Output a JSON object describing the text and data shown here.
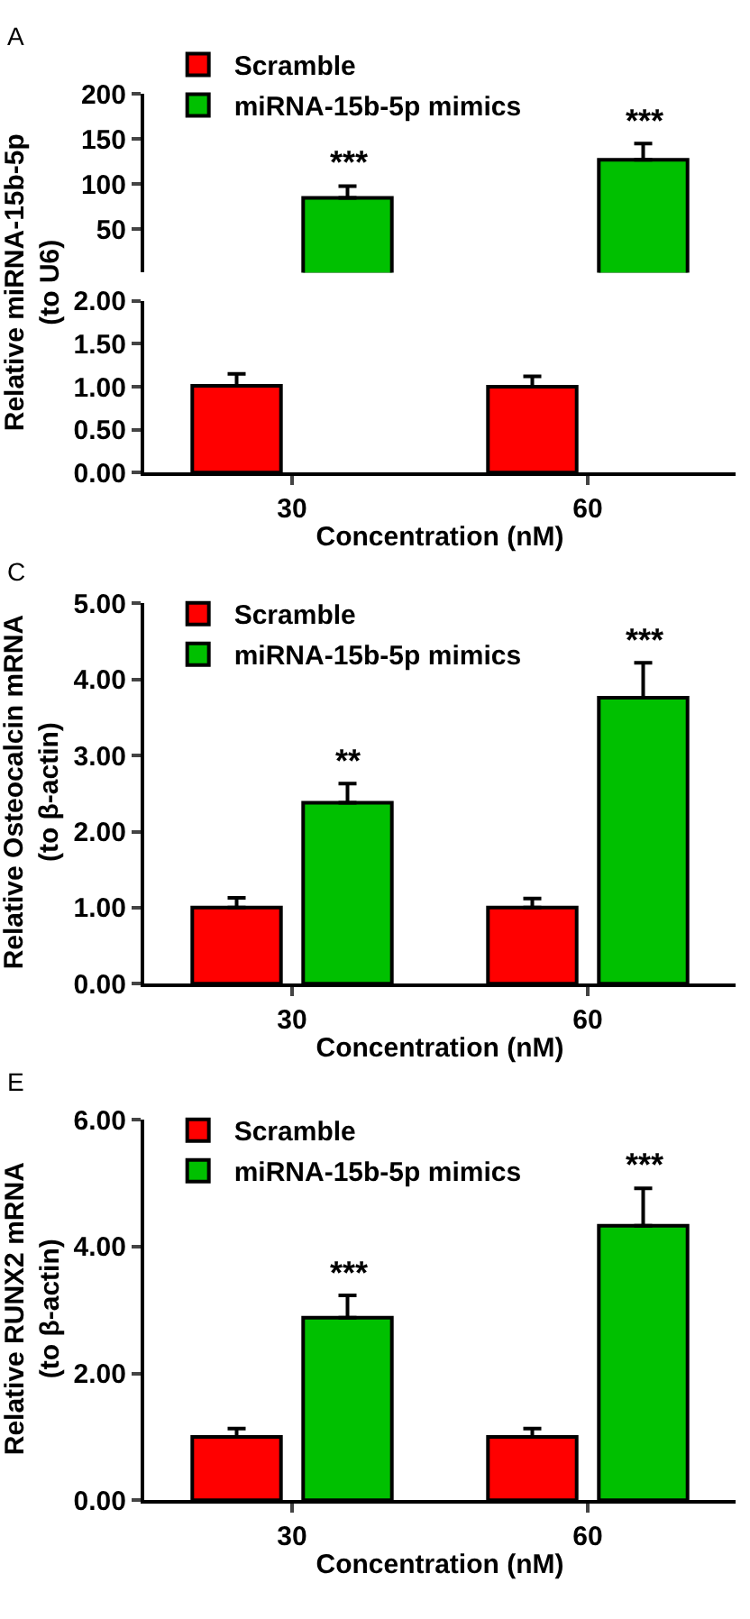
{
  "chart_data": [
    {
      "type": "bar",
      "title": "A",
      "ylabel": "Relative miRNA-15b-5p\n(to U6)",
      "categories": [
        "30",
        "60"
      ],
      "ylim": [
        2,
        200
      ],
      "yticks": [
        50,
        100,
        150,
        200
      ],
      "tick_labels": "y",
      "legend": "top left",
      "grid": false,
      "series": [
        {
          "name": "Scramble",
          "color": "#ff0000",
          "values": [
            null,
            null
          ]
        },
        {
          "name": "miRNA-15b-5p mimics",
          "color": "#00c000",
          "values": [
            85,
            127
          ],
          "errors": [
            [
              85,
              98
            ],
            [
              127,
              145
            ]
          ]
        }
      ],
      "annotations": [
        "***",
        "***"
      ]
    },
    {
      "type": "bar",
      "xlabel": "Concentration (nM)",
      "categories": [
        "30",
        "60"
      ],
      "ylim": [
        0,
        2
      ],
      "yticks": [
        {
          "value": 0,
          "label": "0.00"
        },
        {
          "value": 0.5,
          "label": "0.50"
        },
        {
          "value": 1,
          "label": "1.00"
        },
        {
          "value": 1.5,
          "label": "1.50"
        },
        {
          "value": 2,
          "label": "2.00"
        }
      ],
      "grid": false,
      "series": [
        {
          "color": "#ff0000",
          "values": [
            1.01,
            1.0
          ],
          "errors": [
            [
              1.01,
              1.15
            ],
            [
              1.0,
              1.12
            ]
          ]
        },
        {
          "color": "#00c000",
          "values": [
            null,
            null
          ]
        }
      ]
    },
    {
      "type": "bar",
      "title": "C",
      "ylabel": "Relative Osteocalcin mRNA\n(to β-actin)",
      "xlabel": "Concentration (nM)",
      "categories": [
        "30",
        "60"
      ],
      "ylim": [
        0,
        5
      ],
      "yticks": [
        {
          "value": 0,
          "label": "0.00"
        },
        {
          "value": 1,
          "label": "1.00"
        },
        {
          "value": 2,
          "label": "2.00"
        },
        {
          "value": 3,
          "label": "3.00"
        },
        {
          "value": 4,
          "label": "4.00"
        },
        {
          "value": 5,
          "label": "5.00"
        }
      ],
      "legend": "top left",
      "grid": false,
      "series": [
        {
          "name": "Scramble",
          "color": "#ff0000",
          "values": [
            1.0,
            1.0
          ],
          "errors": [
            [
              1.0,
              1.13
            ],
            [
              1.0,
              1.12
            ]
          ]
        },
        {
          "name": "miRNA-15b-5p mimics",
          "color": "#00c000",
          "values": [
            2.38,
            3.76
          ],
          "errors": [
            [
              2.38,
              2.63
            ],
            [
              3.76,
              4.22
            ]
          ]
        }
      ],
      "annotations": [
        "**",
        "***"
      ]
    },
    {
      "type": "bar",
      "title": "E",
      "ylabel": "Relative RUNX2 mRNA\n(to β-actin)",
      "xlabel": "Concentration (nM)",
      "categories": [
        "30",
        "60"
      ],
      "ylim": [
        0,
        6
      ],
      "yticks": [
        {
          "value": 0,
          "label": "0.00"
        },
        {
          "value": 2,
          "label": "2.00"
        },
        {
          "value": 4,
          "label": "4.00"
        },
        {
          "value": 6,
          "label": "6.00"
        }
      ],
      "legend": "top left",
      "grid": false,
      "series": [
        {
          "name": "Scramble",
          "color": "#ff0000",
          "values": [
            1.0,
            1.0
          ],
          "errors": [
            [
              1.0,
              1.13
            ],
            [
              1.0,
              1.13
            ]
          ]
        },
        {
          "name": "miRNA-15b-5p mimics",
          "color": "#00c000",
          "values": [
            2.88,
            4.33
          ],
          "errors": [
            [
              2.88,
              3.23
            ],
            [
              4.33,
              4.92
            ]
          ]
        }
      ],
      "annotations": [
        "***",
        "***"
      ]
    }
  ]
}
